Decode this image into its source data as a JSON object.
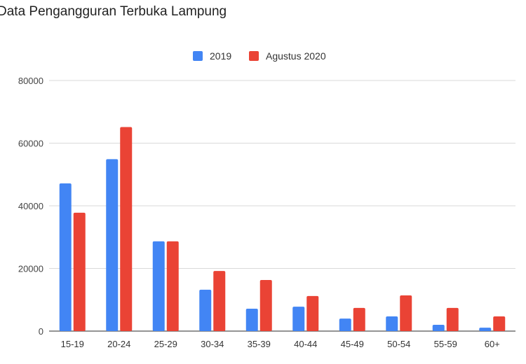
{
  "chart_data": {
    "type": "bar",
    "title": "Data Pengangguran Terbuka Lampung",
    "xlabel": "",
    "ylabel": "",
    "categories": [
      "15-19",
      "20-24",
      "25-29",
      "30-34",
      "35-39",
      "40-44",
      "45-49",
      "50-54",
      "55-59",
      "60+"
    ],
    "series": [
      {
        "name": "2019",
        "color": "#4285f4",
        "values": [
          47150,
          54900,
          28650,
          13200,
          7150,
          7800,
          4000,
          4700,
          2000,
          1100
        ]
      },
      {
        "name": "Agustus 2020",
        "color": "#ea4335",
        "values": [
          37800,
          65150,
          28650,
          19200,
          16300,
          11200,
          7400,
          11400,
          7400,
          4700
        ]
      }
    ],
    "ylim": [
      0,
      80000
    ],
    "yticks": [
      "0",
      "20000",
      "40000",
      "60000",
      "80000"
    ],
    "grid": true,
    "legend": "top-center"
  }
}
